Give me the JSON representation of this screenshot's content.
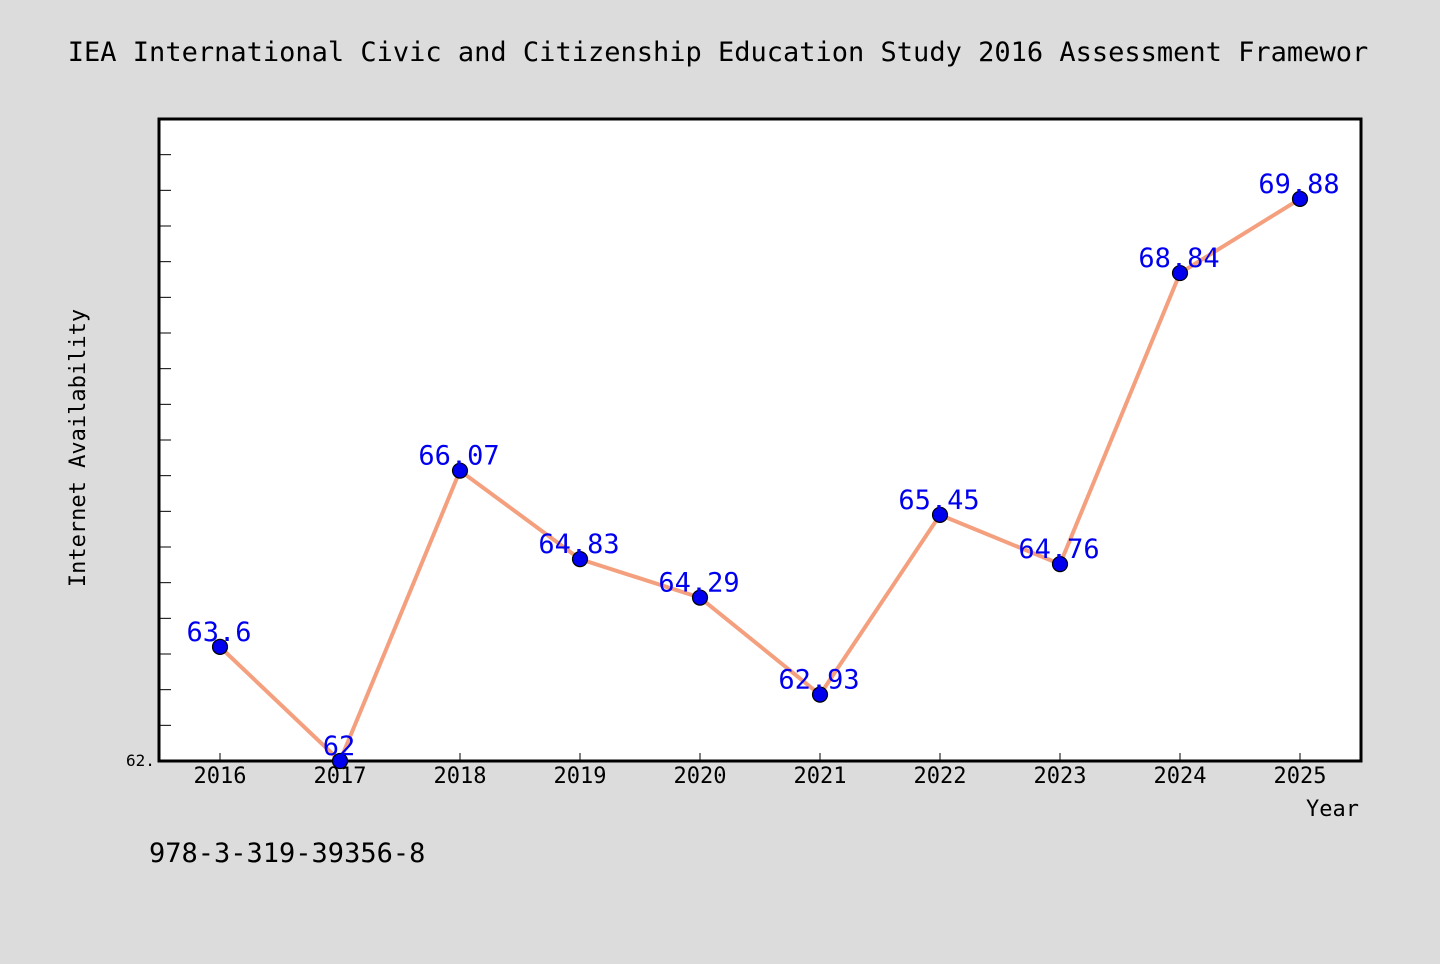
{
  "chart_data": {
    "type": "line",
    "title": "IEA International Civic and Citizenship Education Study 2016 Assessment Framewor",
    "xlabel": "Year",
    "ylabel": "Internet Availability",
    "categories": [
      "2016",
      "2017",
      "2018",
      "2019",
      "2020",
      "2021",
      "2022",
      "2023",
      "2024",
      "2025"
    ],
    "series": [
      {
        "values": [
          63.6,
          62,
          66.07,
          64.83,
          64.29,
          62.93,
          65.45,
          64.76,
          68.84,
          69.88
        ],
        "data_labels": [
          "63.6",
          "62",
          "66.07",
          "64.83",
          "64.29",
          "62.93",
          "65.45",
          "64.76",
          "68.84",
          "69.88"
        ],
        "line_color": "#f4a07e",
        "marker_color": "#0000ee",
        "label_color": "#0000ee"
      }
    ],
    "ylim": [
      62,
      71
    ],
    "y_tick_label": "62.",
    "grid": false,
    "legend": "none"
  },
  "footer": {
    "isbn": "978-3-319-39356-8"
  },
  "colors": {
    "background": "#dcdcdc",
    "plot_background": "#ffffff",
    "axis": "#000000"
  }
}
